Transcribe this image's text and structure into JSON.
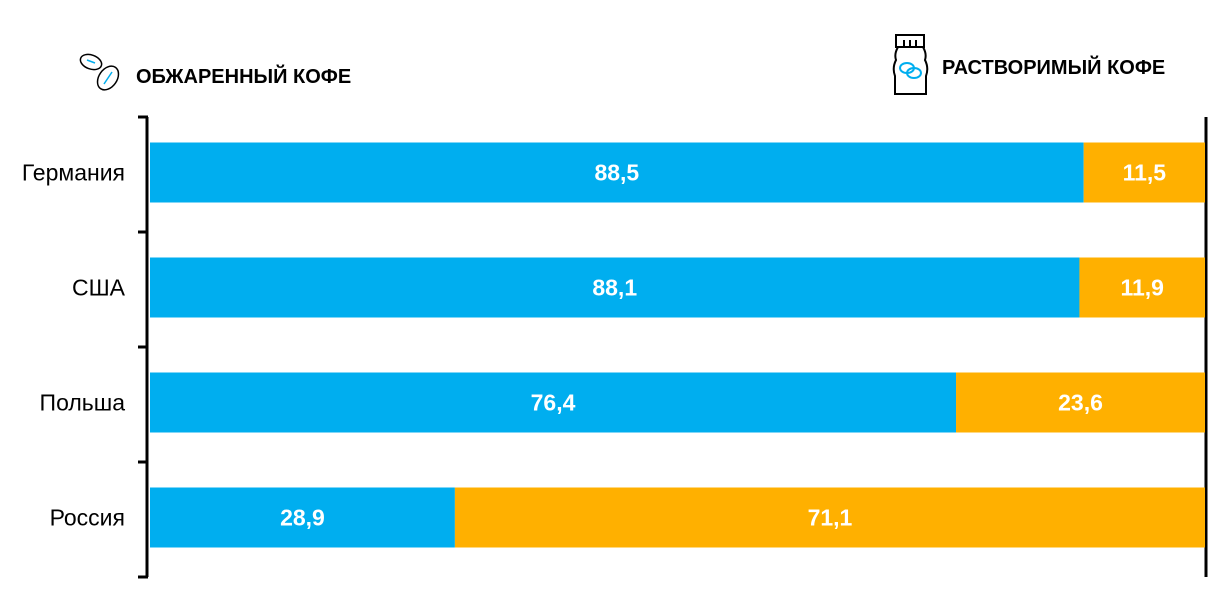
{
  "chart_data": {
    "type": "bar",
    "stacked": true,
    "orientation": "horizontal",
    "categories": [
      "Германия",
      "США",
      "Польша",
      "Россия"
    ],
    "series": [
      {
        "name": "ОБЖАРЕННЫЙ КОФЕ",
        "color": "#00AEEF",
        "icon": "coffee-beans-icon",
        "values": [
          88.5,
          88.1,
          76.4,
          28.9
        ],
        "labels": [
          "88,5",
          "88,1",
          "76,4",
          "28,9"
        ]
      },
      {
        "name": "РАСТВОРИМЫЙ КОФЕ",
        "color": "#FFB000",
        "icon": "instant-coffee-jar-icon",
        "values": [
          11.5,
          11.9,
          23.6,
          71.1
        ],
        "labels": [
          "11,5",
          "11,9",
          "23,6",
          "71,1"
        ]
      }
    ],
    "xlim": [
      0,
      100
    ],
    "legend": "top"
  }
}
